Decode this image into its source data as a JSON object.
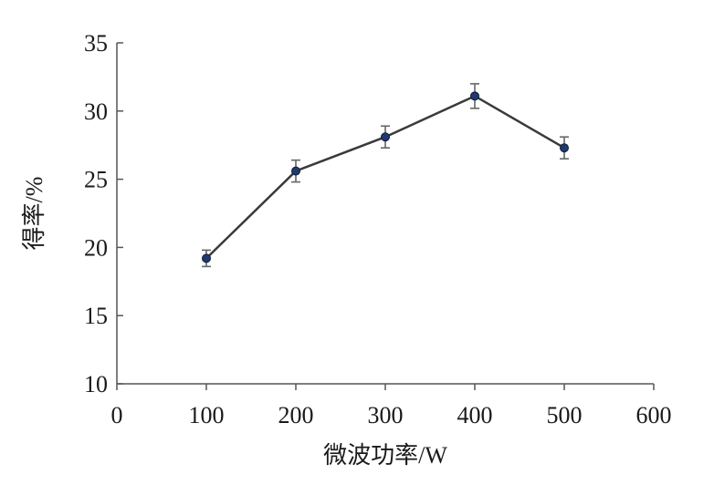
{
  "chart_data": {
    "type": "line",
    "xlabel": "微波功率/W",
    "ylabel": "得率/%",
    "xlim": [
      0,
      600
    ],
    "ylim": [
      10,
      35
    ],
    "x_ticks": [
      0,
      100,
      200,
      300,
      400,
      500,
      600
    ],
    "y_ticks": [
      10,
      15,
      20,
      25,
      30,
      35
    ],
    "grid": false,
    "series": [
      {
        "x": [
          100,
          200,
          300,
          400,
          500
        ],
        "values": [
          19.2,
          25.6,
          28.1,
          31.1,
          27.3
        ],
        "error": [
          0.6,
          0.8,
          0.8,
          0.9,
          0.8
        ]
      }
    ],
    "colors": {
      "line": "#3a3a3a",
      "marker": "#1f3a6b",
      "error_bar": "#666666"
    }
  }
}
